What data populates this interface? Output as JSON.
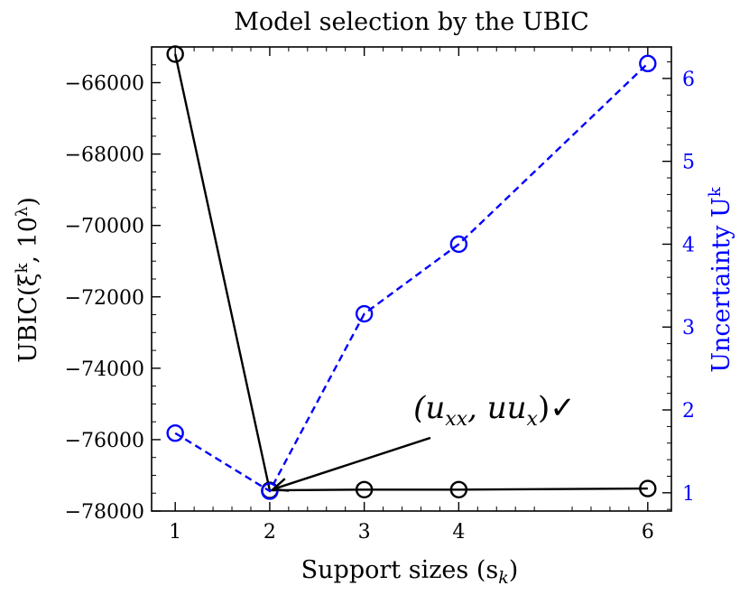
{
  "chart_data": {
    "type": "line",
    "title": "Model selection by the UBIC",
    "xlabel": "Support sizes (s",
    "xlabel_sub": "k",
    "xlabel_close": ")",
    "ylabel_left": "UBIC(ξ",
    "ylabel_left_sup": "k",
    "ylabel_left_mid": ", 10",
    "ylabel_left_sup2": "λ",
    "ylabel_left_close": ")",
    "ylabel_right": "Uncertainty U",
    "ylabel_right_sup": "k",
    "x": [
      1,
      2,
      3,
      4,
      6
    ],
    "xlim": [
      0.75,
      6.25
    ],
    "xticks": [
      1,
      2,
      3,
      4,
      6
    ],
    "ylim_left": [
      -78000,
      -65000
    ],
    "yticks_left": [
      -78000,
      -76000,
      -74000,
      -72000,
      -70000,
      -68000,
      -66000
    ],
    "ytick_labels_left": [
      "−78000",
      "−76000",
      "−74000",
      "−72000",
      "−70000",
      "−68000",
      "−66000"
    ],
    "ylim_right": [
      0.78,
      6.38
    ],
    "yticks_right": [
      1,
      2,
      3,
      4,
      5,
      6
    ],
    "series": [
      {
        "axis": "left",
        "color": "#000000",
        "style": "solid",
        "marker": "open-circle",
        "values": [
          -65200,
          -77420,
          -77400,
          -77400,
          -77370
        ]
      },
      {
        "axis": "right",
        "color": "#0000ff",
        "style": "dashed",
        "marker": "open-circle",
        "values": [
          1.72,
          1.02,
          3.16,
          4.0,
          6.18
        ]
      }
    ],
    "annotation": {
      "text": "(u",
      "sub1": "xx",
      "mid": ", uu",
      "sub2": "x",
      "close": ")✓",
      "point": {
        "x": 2,
        "y": -77420
      },
      "text_at": {
        "x": 3.7,
        "y": -75950
      }
    },
    "colors": {
      "left_axis": "#000000",
      "right_axis": "#0000ff"
    },
    "grid": false,
    "legend": "none"
  }
}
